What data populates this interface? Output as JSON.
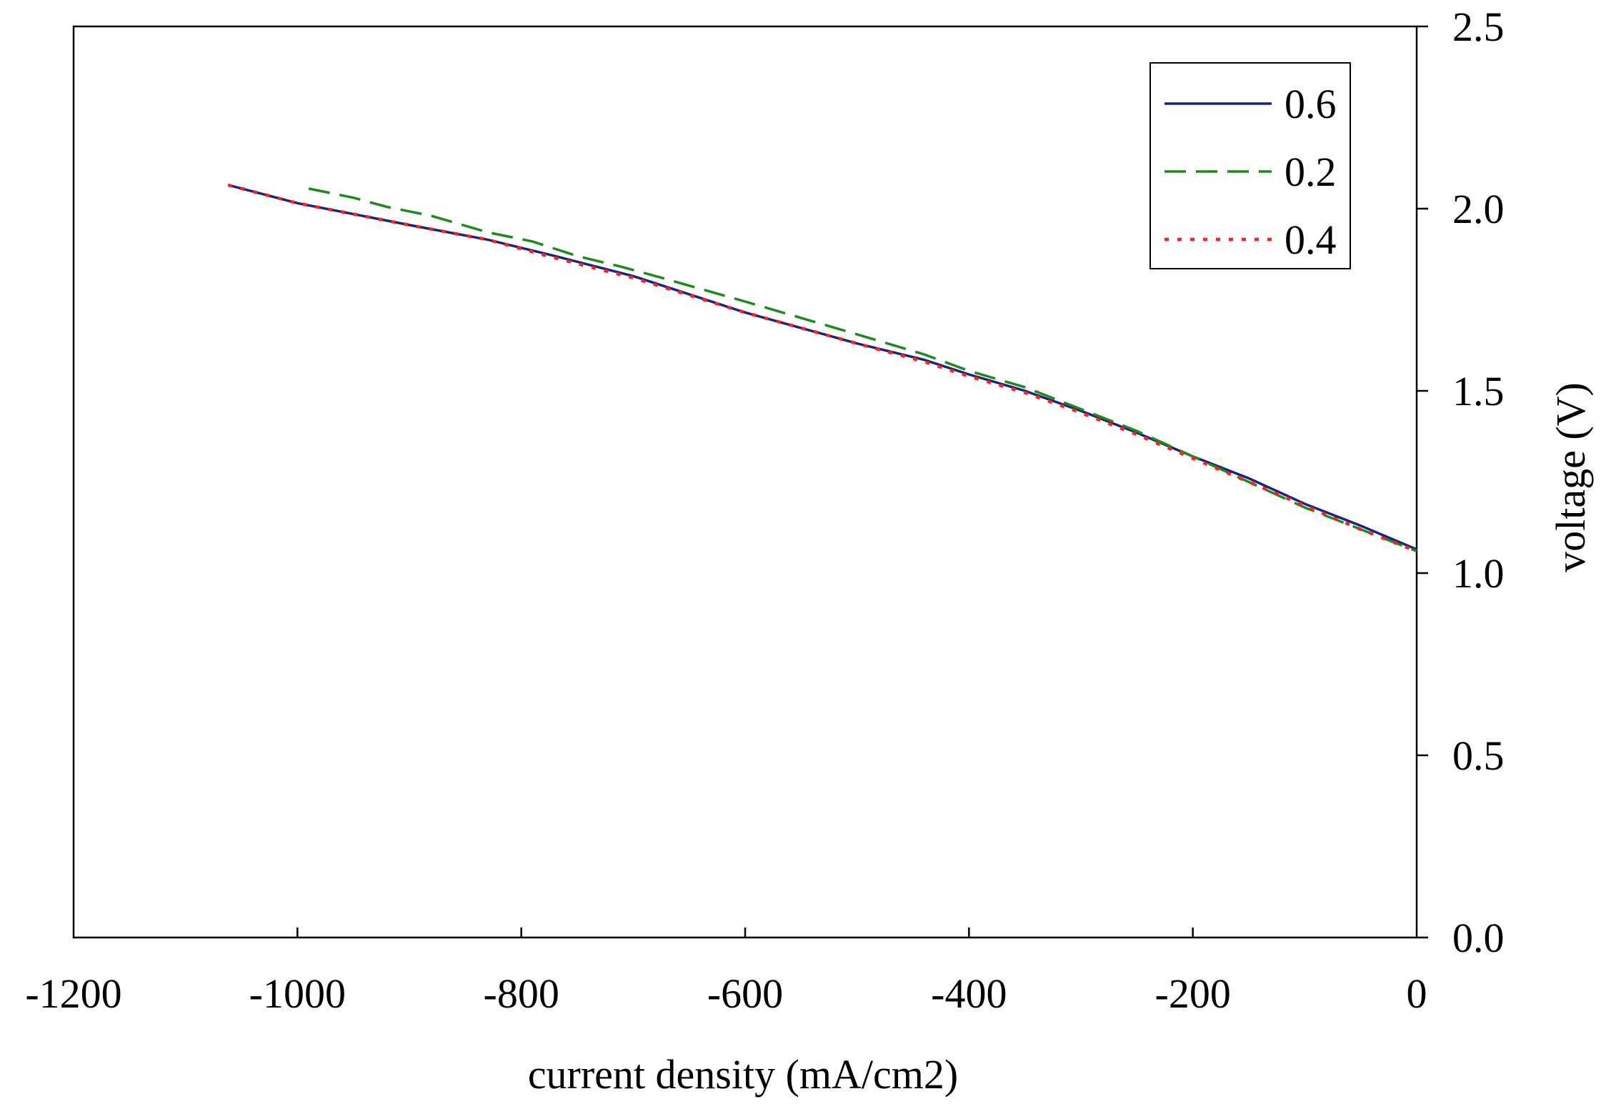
{
  "chart_data": {
    "type": "line",
    "title": "",
    "xlabel": "current density (mA/cm2)",
    "ylabel": "voltage (V)",
    "xlim": [
      -1200,
      0
    ],
    "ylim": [
      0.0,
      2.5
    ],
    "x_ticks": [
      "-1200",
      "-1000",
      "-800",
      "-600",
      "-400",
      "-200",
      "0"
    ],
    "x_tick_values": [
      -1200,
      -1000,
      -800,
      -600,
      -400,
      -200,
      0
    ],
    "y_ticks": [
      "0.0",
      "0.5",
      "1.0",
      "1.5",
      "2.0",
      "2.5"
    ],
    "y_tick_values": [
      0.0,
      0.5,
      1.0,
      1.5,
      2.0,
      2.5
    ],
    "y_axis_side": "right",
    "grid": false,
    "legend_position": "top-right",
    "series": [
      {
        "name": "0.6",
        "color": "#1a237e",
        "style": "solid",
        "points": [
          [
            -1062,
            2.065
          ],
          [
            -1000,
            2.015
          ],
          [
            -900,
            1.955
          ],
          [
            -830,
            1.915
          ],
          [
            -770,
            1.87
          ],
          [
            -700,
            1.815
          ],
          [
            -600,
            1.715
          ],
          [
            -500,
            1.63
          ],
          [
            -440,
            1.585
          ],
          [
            -400,
            1.545
          ],
          [
            -350,
            1.5
          ],
          [
            -300,
            1.445
          ],
          [
            -250,
            1.385
          ],
          [
            -200,
            1.32
          ],
          [
            -150,
            1.26
          ],
          [
            -100,
            1.19
          ],
          [
            -50,
            1.13
          ],
          [
            0,
            1.065
          ]
        ]
      },
      {
        "name": "0.2",
        "color": "#1e8a1e",
        "style": "dashed",
        "points": [
          [
            -990,
            2.055
          ],
          [
            -950,
            2.03
          ],
          [
            -920,
            2.005
          ],
          [
            -880,
            1.98
          ],
          [
            -830,
            1.935
          ],
          [
            -790,
            1.91
          ],
          [
            -750,
            1.87
          ],
          [
            -710,
            1.84
          ],
          [
            -680,
            1.815
          ],
          [
            -600,
            1.745
          ],
          [
            -500,
            1.655
          ],
          [
            -440,
            1.6
          ],
          [
            -400,
            1.555
          ],
          [
            -350,
            1.51
          ],
          [
            -300,
            1.45
          ],
          [
            -250,
            1.39
          ],
          [
            -200,
            1.32
          ],
          [
            -150,
            1.25
          ],
          [
            -100,
            1.18
          ],
          [
            -50,
            1.12
          ],
          [
            0,
            1.06
          ]
        ]
      },
      {
        "name": "0.4",
        "color": "#ff2020",
        "style": "dotted",
        "points": [
          [
            -1062,
            2.065
          ],
          [
            -1000,
            2.015
          ],
          [
            -900,
            1.955
          ],
          [
            -830,
            1.915
          ],
          [
            -770,
            1.865
          ],
          [
            -700,
            1.81
          ],
          [
            -600,
            1.715
          ],
          [
            -500,
            1.63
          ],
          [
            -440,
            1.58
          ],
          [
            -400,
            1.54
          ],
          [
            -350,
            1.495
          ],
          [
            -300,
            1.44
          ],
          [
            -250,
            1.38
          ],
          [
            -200,
            1.315
          ],
          [
            -150,
            1.25
          ],
          [
            -100,
            1.185
          ],
          [
            -50,
            1.12
          ],
          [
            0,
            1.06
          ]
        ]
      }
    ]
  }
}
